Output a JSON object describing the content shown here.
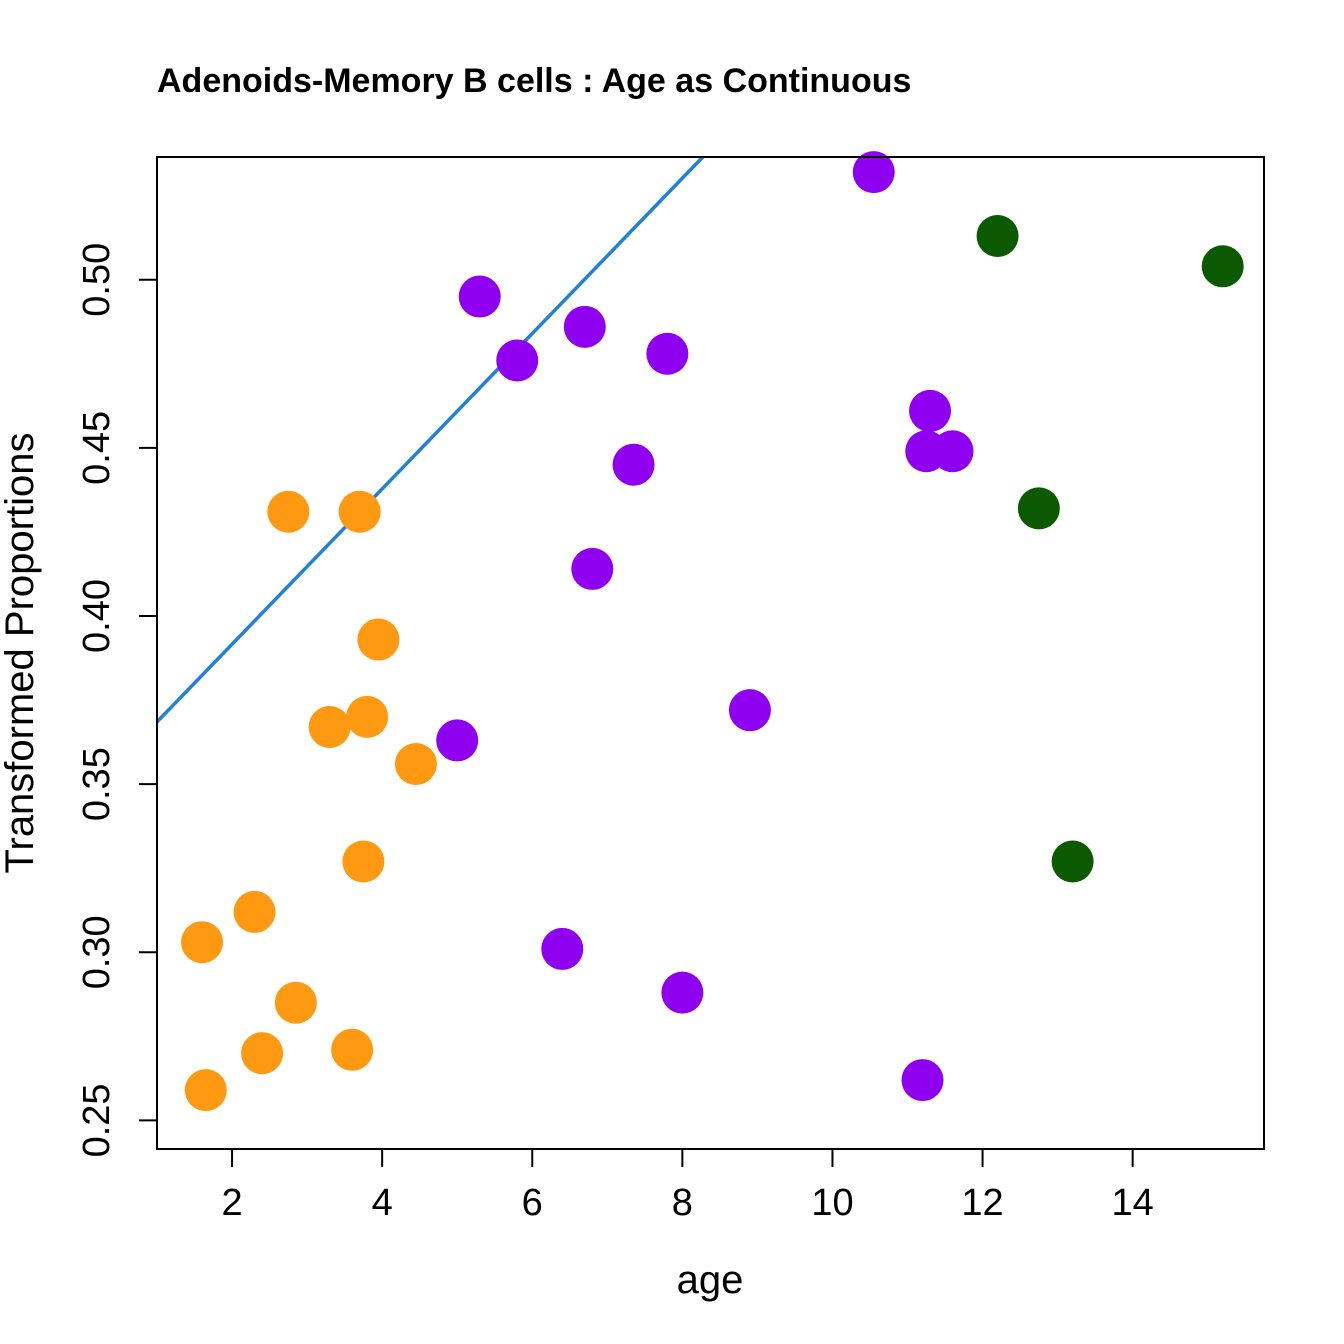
{
  "chart_data": {
    "type": "scatter",
    "title": "Adenoids-Memory B cells : Age as Continuous",
    "xlabel": "age",
    "ylabel": "Transformed Proportions",
    "xlim": [
      1.0,
      15.75
    ],
    "ylim": [
      0.2415,
      0.5365
    ],
    "xticks": [
      2,
      4,
      6,
      8,
      10,
      12,
      14
    ],
    "yticks": [
      0.25,
      0.3,
      0.35,
      0.4,
      0.45,
      0.5
    ],
    "xtick_labels": [
      "2",
      "4",
      "6",
      "8",
      "10",
      "12",
      "14"
    ],
    "ytick_labels": [
      "0.25",
      "0.30",
      "0.35",
      "0.40",
      "0.45",
      "0.50"
    ],
    "grid": false,
    "legend": "none",
    "trend_line": {
      "color": "#2180d8",
      "intercept": 0.3454,
      "slope": 0.0231
    },
    "series": [
      {
        "color": "#ff9912",
        "points": [
          [
            1.6,
            0.303
          ],
          [
            1.65,
            0.259
          ],
          [
            2.3,
            0.312
          ],
          [
            2.4,
            0.27
          ],
          [
            2.75,
            0.431
          ],
          [
            2.85,
            0.285
          ],
          [
            3.3,
            0.367
          ],
          [
            3.6,
            0.271
          ],
          [
            3.7,
            0.431
          ],
          [
            3.75,
            0.327
          ],
          [
            3.8,
            0.37
          ],
          [
            3.95,
            0.393
          ],
          [
            4.45,
            0.356
          ]
        ]
      },
      {
        "color": "#8f00f0",
        "points": [
          [
            5.0,
            0.363
          ],
          [
            5.3,
            0.495
          ],
          [
            5.8,
            0.476
          ],
          [
            6.4,
            0.301
          ],
          [
            6.7,
            0.486
          ],
          [
            6.8,
            0.414
          ],
          [
            7.35,
            0.445
          ],
          [
            7.8,
            0.478
          ],
          [
            8.0,
            0.288
          ],
          [
            8.9,
            0.372
          ],
          [
            10.55,
            0.532
          ],
          [
            11.2,
            0.262
          ],
          [
            11.25,
            0.449
          ],
          [
            11.3,
            0.461
          ],
          [
            11.6,
            0.449
          ]
        ]
      },
      {
        "color": "#0b5a00",
        "points": [
          [
            12.2,
            0.513
          ],
          [
            12.75,
            0.432
          ],
          [
            13.2,
            0.327
          ],
          [
            15.2,
            0.504
          ]
        ]
      }
    ]
  }
}
